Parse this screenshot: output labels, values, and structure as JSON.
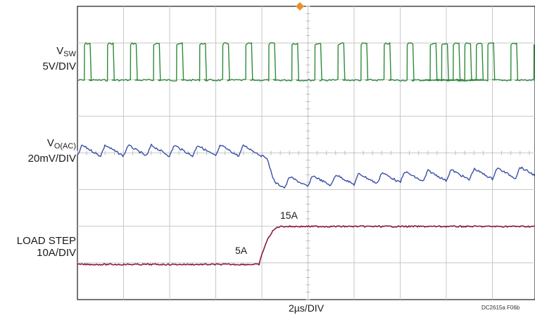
{
  "chart_data": {
    "type": "line",
    "title": "",
    "xlabel": "2µs/DIV",
    "figure_code": "DC2615a F06b",
    "grid": true,
    "trigger_marker": "orange-diamond",
    "series": [
      {
        "name": "VSW",
        "label_main": "V",
        "label_sub": "SW",
        "scale": "5V/DIV",
        "color": "#2e8b3a",
        "kind": "switching",
        "period_us": 1.0,
        "pulse_width_us": 0.2,
        "high_div": 1.0,
        "low_div": 0.0
      },
      {
        "name": "VO(AC)",
        "label_main": "V",
        "label_sub": "O(AC)",
        "scale": "20mV/DIV",
        "color": "#3a4fa8",
        "kind": "ripple",
        "ripple_pp_div": 0.3,
        "droop_div": 0.9,
        "recovery": "partial"
      },
      {
        "name": "LOAD STEP",
        "label_main": "LOAD STEP",
        "label_sub": "",
        "scale": "10A/DIV",
        "color": "#8b1a3c",
        "kind": "step",
        "levels_A": [
          5,
          15
        ],
        "step_time_us": 5.0,
        "rise_time_us": 0.4
      }
    ],
    "annotations": [
      "5A",
      "15A"
    ]
  }
}
